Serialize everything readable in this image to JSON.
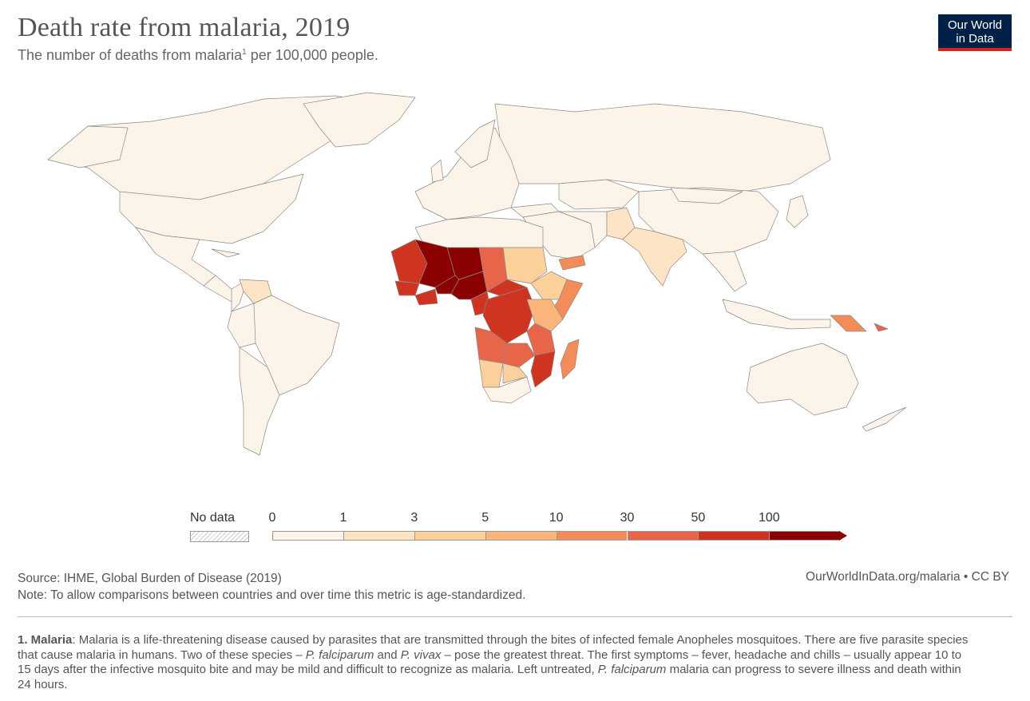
{
  "header": {
    "title": "Death rate from malaria, 2019",
    "subtitle_pre": "The number of deaths from malaria",
    "subtitle_sup": "1",
    "subtitle_post": " per 100,000 people."
  },
  "logo": {
    "line1": "Our World",
    "line2": "in Data"
  },
  "legend": {
    "no_data_label": "No data",
    "ticks": [
      "0",
      "1",
      "3",
      "5",
      "10",
      "30",
      "50",
      "100"
    ],
    "colors": [
      "#fdf4e9",
      "#fde4c4",
      "#fcd09a",
      "#fbb57a",
      "#f48c5a",
      "#e76548",
      "#cf3420",
      "#8b0000"
    ]
  },
  "map_data": {
    "type": "choropleth",
    "metric": "Death rate from malaria per 100,000 people",
    "regions": [
      {
        "name": "Mali",
        "bin": 7
      },
      {
        "name": "Burkina Faso",
        "bin": 7
      },
      {
        "name": "Niger",
        "bin": 7
      },
      {
        "name": "Nigeria",
        "bin": 7
      },
      {
        "name": "Sierra Leone",
        "bin": 7
      },
      {
        "name": "Mauritania",
        "bin": 6
      },
      {
        "name": "Guinea",
        "bin": 6
      },
      {
        "name": "Côte d'Ivoire",
        "bin": 6
      },
      {
        "name": "Cameroon",
        "bin": 6
      },
      {
        "name": "DR Congo",
        "bin": 6
      },
      {
        "name": "Mozambique",
        "bin": 6
      },
      {
        "name": "Malawi",
        "bin": 6
      },
      {
        "name": "Central African Republic",
        "bin": 6
      },
      {
        "name": "Chad",
        "bin": 5
      },
      {
        "name": "Angola",
        "bin": 5
      },
      {
        "name": "Tanzania",
        "bin": 5
      },
      {
        "name": "Uganda",
        "bin": 5
      },
      {
        "name": "Zambia",
        "bin": 5
      },
      {
        "name": "South Sudan",
        "bin": 5
      },
      {
        "name": "Madagascar",
        "bin": 4
      },
      {
        "name": "Somalia",
        "bin": 4
      },
      {
        "name": "Yemen",
        "bin": 4
      },
      {
        "name": "Papua New Guinea",
        "bin": 4
      },
      {
        "name": "Solomon Islands",
        "bin": 5
      },
      {
        "name": "Kenya",
        "bin": 3
      },
      {
        "name": "Sudan",
        "bin": 2
      },
      {
        "name": "Ethiopia",
        "bin": 2
      },
      {
        "name": "Namibia",
        "bin": 2
      },
      {
        "name": "Zimbabwe",
        "bin": 2
      },
      {
        "name": "India",
        "bin": 1
      },
      {
        "name": "Pakistan",
        "bin": 1
      },
      {
        "name": "Venezuela",
        "bin": 1
      }
    ]
  },
  "footer": {
    "source": "Source: IHME, Global Burden of Disease (2019)",
    "note": "Note: To allow comparisons between countries and over time this metric is age-standardized.",
    "credit": "OurWorldInData.org/malaria • CC BY",
    "footnote_label": "1. Malaria",
    "footnote_parts": [
      ": Malaria is a life-threatening disease caused by parasites that are transmitted through the bites of infected female Anopheles mosquitoes. There are five parasite species that cause malaria in humans. Two of these species – ",
      "P. falciparum",
      " and ",
      "P. vivax",
      " – pose the greatest threat. The first symptoms – fever, headache and chills – usually appear 10 to 15 days after the infective mosquito bite and may be mild and difficult to recognize as malaria. Left untreated, ",
      "P. falciparum",
      " malaria can progress to severe illness and death within 24 hours."
    ]
  }
}
